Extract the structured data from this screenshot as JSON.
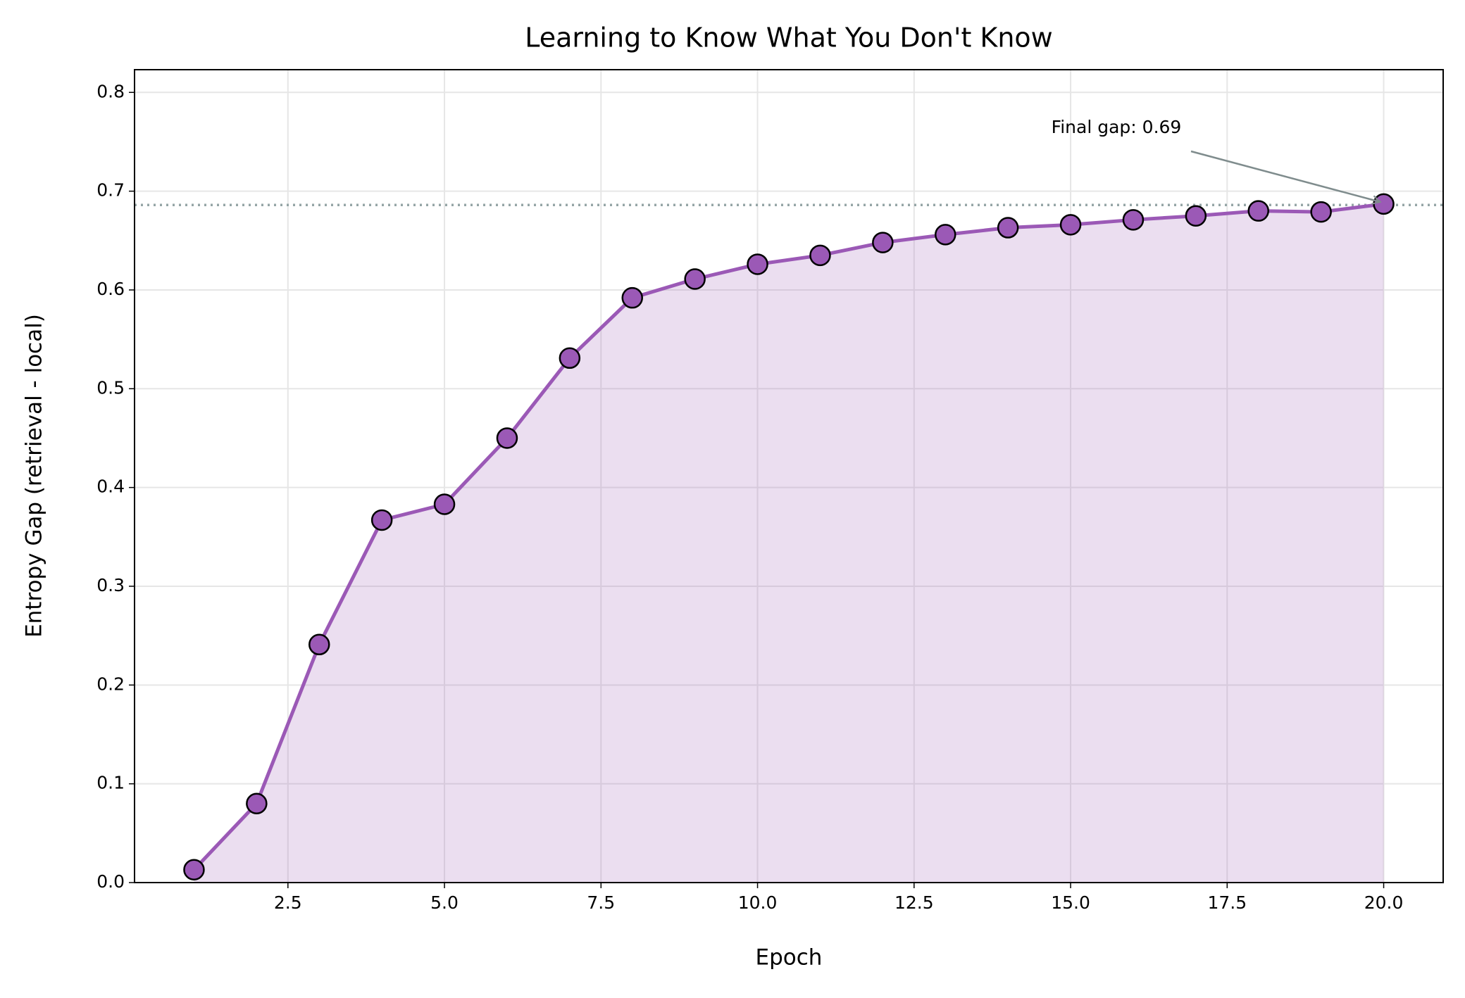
{
  "chart_data": {
    "type": "line",
    "title": "Learning to Know What You Don't Know",
    "x_label": "Epoch",
    "y_label": "Entropy Gap (retrieval - local)",
    "x": [
      1,
      2,
      3,
      4,
      5,
      6,
      7,
      8,
      9,
      10,
      11,
      12,
      13,
      14,
      15,
      16,
      17,
      18,
      19,
      20
    ],
    "values": [
      0.013,
      0.08,
      0.241,
      0.367,
      0.383,
      0.45,
      0.531,
      0.592,
      0.611,
      0.626,
      0.635,
      0.648,
      0.656,
      0.663,
      0.666,
      0.671,
      0.675,
      0.68,
      0.679,
      0.687
    ],
    "color": "#9b59b6",
    "xlim": [
      0.05,
      20.95
    ],
    "xticks": [
      2.5,
      {
        "value": 5,
        "label": "5.0"
      },
      7.5,
      {
        "value": 10,
        "label": "10.0"
      },
      12.5,
      {
        "value": 15,
        "label": "15.0"
      },
      17.5,
      {
        "value": 20,
        "label": "20.0"
      }
    ],
    "ylim": [
      0,
      0.823
    ],
    "yticks": [
      {
        "value": 0,
        "label": "0.0"
      },
      0.1,
      0.2,
      0.3,
      0.4,
      0.5,
      0.6,
      0.7,
      0.8
    ],
    "grid": true,
    "reference_line": 0.686,
    "annotation": "Final gap: 0.69"
  }
}
